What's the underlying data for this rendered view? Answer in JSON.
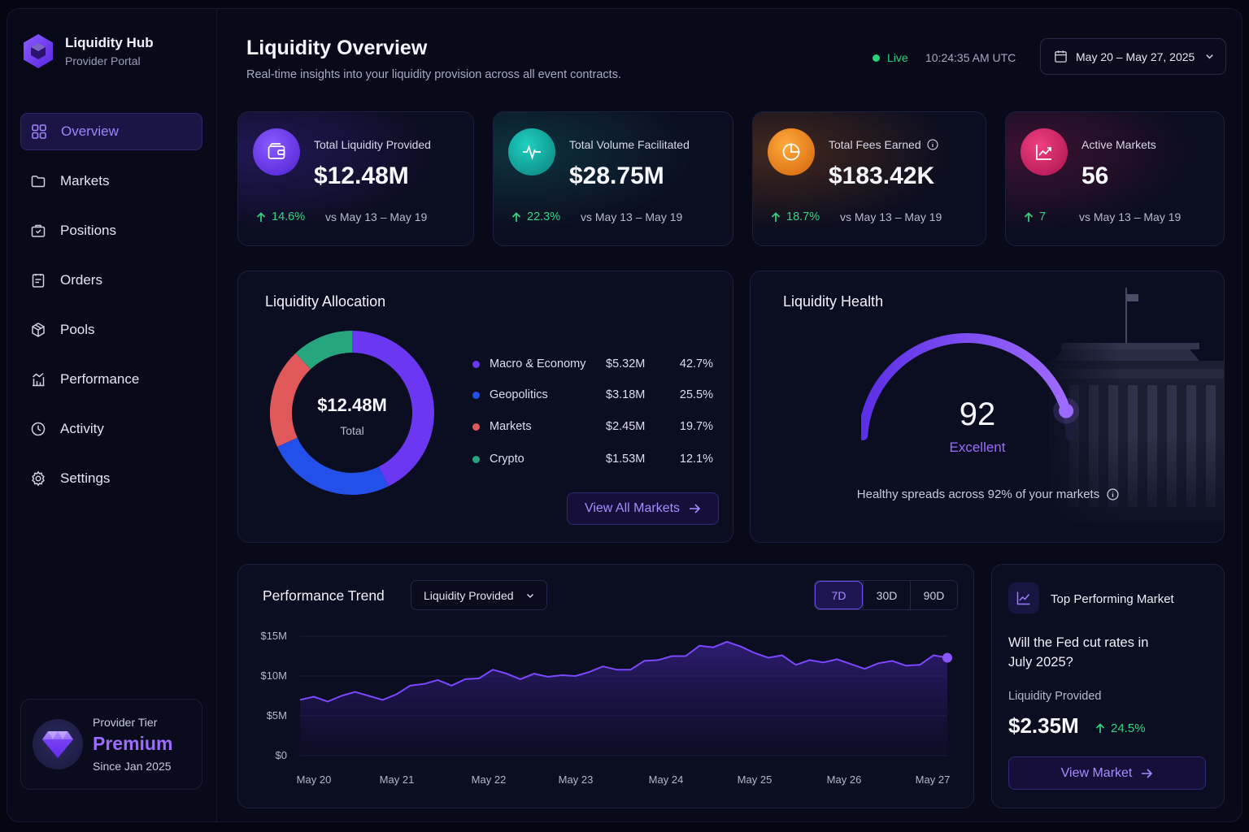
{
  "brand": {
    "title": "Liquidity Hub",
    "subtitle": "Provider Portal"
  },
  "nav": [
    {
      "label": "Overview",
      "icon": "grid-icon",
      "active": true
    },
    {
      "label": "Markets",
      "icon": "folder-icon"
    },
    {
      "label": "Positions",
      "icon": "briefcase-icon"
    },
    {
      "label": "Orders",
      "icon": "clipboard-icon"
    },
    {
      "label": "Pools",
      "icon": "cube-icon"
    },
    {
      "label": "Performance",
      "icon": "chart-icon"
    },
    {
      "label": "Activity",
      "icon": "clock-icon"
    },
    {
      "label": "Settings",
      "icon": "gear-icon"
    }
  ],
  "tier": {
    "label": "Provider Tier",
    "name": "Premium",
    "since": "Since Jan 2025"
  },
  "header": {
    "title": "Liquidity Overview",
    "subtitle": "Real-time insights into your liquidity provision across all event contracts.",
    "live": "Live",
    "clock": "10:24:35 AM UTC",
    "date_range": "May 20 – May 27, 2025"
  },
  "stats": [
    {
      "label": "Total Liquidity Provided",
      "value": "$12.48M",
      "change": "14.6%",
      "compare": "vs May 13 – May 19",
      "icon": "wallet-icon",
      "color": "#6d3cf5"
    },
    {
      "label": "Total Volume Facilitated",
      "value": "$28.75M",
      "change": "22.3%",
      "compare": "vs May 13 – May 19",
      "icon": "pulse-icon",
      "color": "#12a89f"
    },
    {
      "label": "Total Fees Earned",
      "value": "$183.42K",
      "change": "18.7%",
      "compare": "vs May 13 – May 19",
      "icon": "pie-icon",
      "color": "#f08a1c"
    },
    {
      "label": "Active Markets",
      "value": "56",
      "change": "7",
      "compare": "vs May 13 – May 19",
      "icon": "trend-icon",
      "color": "#d0216a"
    }
  ],
  "allocation": {
    "title": "Liquidity Allocation",
    "total_value": "$12.48M",
    "total_label": "Total",
    "items": [
      {
        "name": "Macro & Economy",
        "amount": "$5.32M",
        "pct": "42.7%",
        "value": 42.7,
        "color": "#6b37f2"
      },
      {
        "name": "Geopolitics",
        "amount": "$3.18M",
        "pct": "25.5%",
        "value": 25.5,
        "color": "#2450ea"
      },
      {
        "name": "Markets",
        "amount": "$2.45M",
        "pct": "19.7%",
        "value": 19.7,
        "color": "#e0585a"
      },
      {
        "name": "Crypto",
        "amount": "$1.53M",
        "pct": "12.1%",
        "value": 12.1,
        "color": "#27a57f"
      }
    ],
    "button": "View All Markets"
  },
  "health": {
    "title": "Liquidity Health",
    "score": "92",
    "score_value": 92,
    "rating": "Excellent",
    "note": "Healthy spreads across 92% of your markets"
  },
  "trend": {
    "title": "Performance Trend",
    "metric": "Liquidity Provided",
    "ranges": [
      "7D",
      "30D",
      "90D"
    ],
    "active_range": "7D"
  },
  "chart_data": {
    "type": "area",
    "y_ticks": [
      "$15M",
      "$10M",
      "$5M",
      "$0"
    ],
    "ylim": [
      0,
      15
    ],
    "x_ticks": [
      "May 20",
      "May 21",
      "May 22",
      "May 23",
      "May 24",
      "May 25",
      "May 26",
      "May 27"
    ],
    "series": [
      {
        "values": [
          7.0,
          7.4,
          6.8,
          7.5,
          8.0,
          7.5,
          7.0,
          7.7,
          8.8,
          9.0,
          9.5,
          8.8,
          9.6,
          9.7,
          10.8,
          10.3,
          9.6,
          10.3,
          9.9,
          10.1,
          10.0,
          10.5,
          11.2,
          10.8,
          10.8,
          11.9,
          12.0,
          12.5,
          12.5,
          13.8,
          13.6,
          14.3,
          13.7,
          12.9,
          12.3,
          12.6,
          11.4,
          12.0,
          11.7,
          12.1,
          11.5,
          10.9,
          11.6,
          11.9,
          11.3,
          11.4,
          12.6,
          12.3
        ]
      }
    ]
  },
  "top_market": {
    "title": "Top Performing Market",
    "question": "Will the Fed cut rates in July 2025?",
    "metric_label": "Liquidity Provided",
    "value": "$2.35M",
    "change": "24.5%",
    "button": "View Market"
  }
}
